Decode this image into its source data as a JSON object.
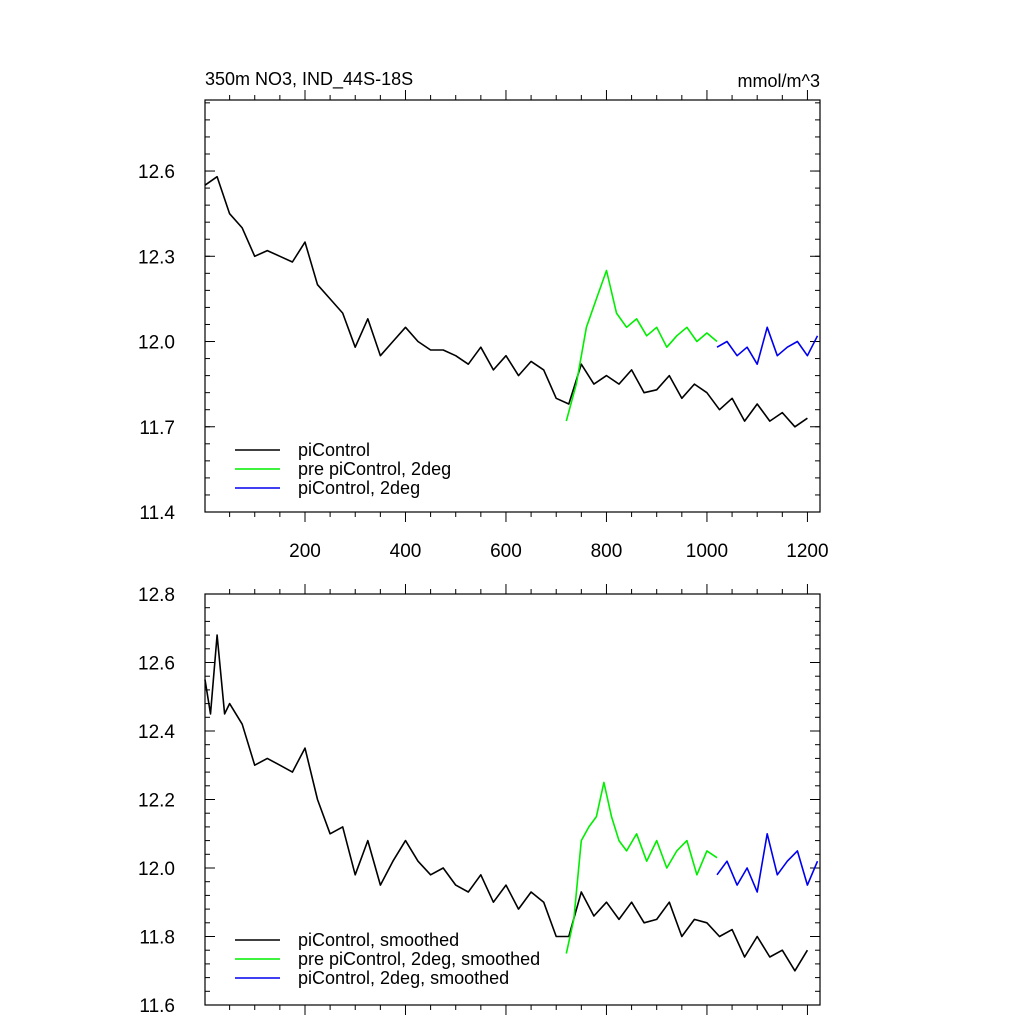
{
  "chart_data": [
    {
      "type": "line",
      "title": "350m NO3, IND_44S-18S",
      "units": "mmol/m^3",
      "xlim": [
        1,
        1225
      ],
      "ylim": [
        11.4,
        12.85
      ],
      "x_ticks": [
        200,
        400,
        600,
        800,
        1000,
        1200
      ],
      "y_ticks": [
        11.4,
        11.7,
        12.0,
        12.3,
        12.6
      ],
      "y_tick_labels": [
        "11.4",
        "11.7",
        "12.0",
        "12.3",
        "12.6"
      ],
      "legend": "bottom-left",
      "series": [
        {
          "name": "piControl",
          "color": "#000000",
          "x": [
            1,
            25,
            50,
            75,
            100,
            125,
            150,
            175,
            200,
            225,
            250,
            275,
            300,
            325,
            350,
            375,
            400,
            425,
            450,
            475,
            500,
            525,
            550,
            575,
            600,
            625,
            650,
            675,
            700,
            725,
            750,
            775,
            800,
            825,
            850,
            875,
            900,
            925,
            950,
            975,
            1000,
            1025,
            1050,
            1075,
            1100,
            1125,
            1150,
            1175,
            1200
          ],
          "y": [
            12.55,
            12.58,
            12.45,
            12.4,
            12.3,
            12.32,
            12.3,
            12.28,
            12.35,
            12.2,
            12.15,
            12.1,
            11.98,
            12.08,
            11.95,
            12.0,
            12.05,
            12.0,
            11.97,
            11.97,
            11.95,
            11.92,
            11.98,
            11.9,
            11.95,
            11.88,
            11.93,
            11.9,
            11.8,
            11.78,
            11.92,
            11.85,
            11.88,
            11.85,
            11.9,
            11.82,
            11.83,
            11.88,
            11.8,
            11.85,
            11.82,
            11.76,
            11.8,
            11.72,
            11.78,
            11.72,
            11.75,
            11.7,
            11.73
          ]
        },
        {
          "name": "pre piControl, 2deg",
          "color": "#00ee00",
          "x": [
            720,
            740,
            760,
            780,
            800,
            820,
            840,
            860,
            880,
            900,
            920,
            940,
            960,
            980,
            1000,
            1020
          ],
          "y": [
            11.72,
            11.85,
            12.05,
            12.15,
            12.25,
            12.1,
            12.05,
            12.08,
            12.02,
            12.05,
            11.98,
            12.02,
            12.05,
            12.0,
            12.03,
            12.0
          ]
        },
        {
          "name": "piControl, 2deg",
          "color": "#0000ee",
          "x": [
            1020,
            1040,
            1060,
            1080,
            1100,
            1120,
            1140,
            1160,
            1180,
            1200,
            1220
          ],
          "y": [
            11.98,
            12.0,
            11.95,
            11.98,
            11.92,
            12.05,
            11.95,
            11.98,
            12.0,
            11.95,
            12.02
          ]
        }
      ]
    },
    {
      "type": "line",
      "xlim": [
        1,
        1225
      ],
      "ylim": [
        11.6,
        12.8
      ],
      "y_ticks": [
        11.6,
        11.8,
        12.0,
        12.2,
        12.4,
        12.6,
        12.8
      ],
      "y_tick_labels": [
        "11.6",
        "11.8",
        "12.0",
        "12.2",
        "12.4",
        "12.6",
        "12.8"
      ],
      "legend": "bottom-left",
      "series": [
        {
          "name": "piControl, smoothed",
          "color": "#000000",
          "x": [
            1,
            12,
            25,
            40,
            50,
            75,
            100,
            125,
            150,
            175,
            200,
            225,
            250,
            275,
            300,
            325,
            350,
            375,
            400,
            425,
            450,
            475,
            500,
            525,
            550,
            575,
            600,
            625,
            650,
            675,
            700,
            725,
            750,
            775,
            800,
            825,
            850,
            875,
            900,
            925,
            950,
            975,
            1000,
            1025,
            1050,
            1075,
            1100,
            1125,
            1150,
            1175,
            1200
          ],
          "y": [
            12.55,
            12.45,
            12.68,
            12.45,
            12.48,
            12.42,
            12.3,
            12.32,
            12.3,
            12.28,
            12.35,
            12.2,
            12.1,
            12.12,
            11.98,
            12.08,
            11.95,
            12.02,
            12.08,
            12.02,
            11.98,
            12.0,
            11.95,
            11.93,
            11.98,
            11.9,
            11.95,
            11.88,
            11.93,
            11.9,
            11.8,
            11.8,
            11.93,
            11.86,
            11.9,
            11.85,
            11.9,
            11.84,
            11.85,
            11.9,
            11.8,
            11.85,
            11.84,
            11.8,
            11.82,
            11.74,
            11.8,
            11.74,
            11.76,
            11.7,
            11.76
          ]
        },
        {
          "name": "pre piControl, 2deg, smoothed",
          "color": "#00ee00",
          "x": [
            720,
            735,
            750,
            765,
            780,
            795,
            810,
            825,
            840,
            860,
            880,
            900,
            920,
            940,
            960,
            980,
            1000,
            1020
          ],
          "y": [
            11.75,
            11.85,
            12.08,
            12.12,
            12.15,
            12.25,
            12.15,
            12.08,
            12.05,
            12.1,
            12.02,
            12.08,
            12.0,
            12.05,
            12.08,
            11.98,
            12.05,
            12.03
          ]
        },
        {
          "name": "piControl, 2deg, smoothed",
          "color": "#0000ee",
          "x": [
            1020,
            1040,
            1060,
            1080,
            1100,
            1120,
            1140,
            1160,
            1180,
            1200,
            1220
          ],
          "y": [
            11.98,
            12.02,
            11.95,
            12.0,
            11.93,
            12.1,
            11.98,
            12.02,
            12.05,
            11.95,
            12.02
          ]
        }
      ]
    }
  ]
}
